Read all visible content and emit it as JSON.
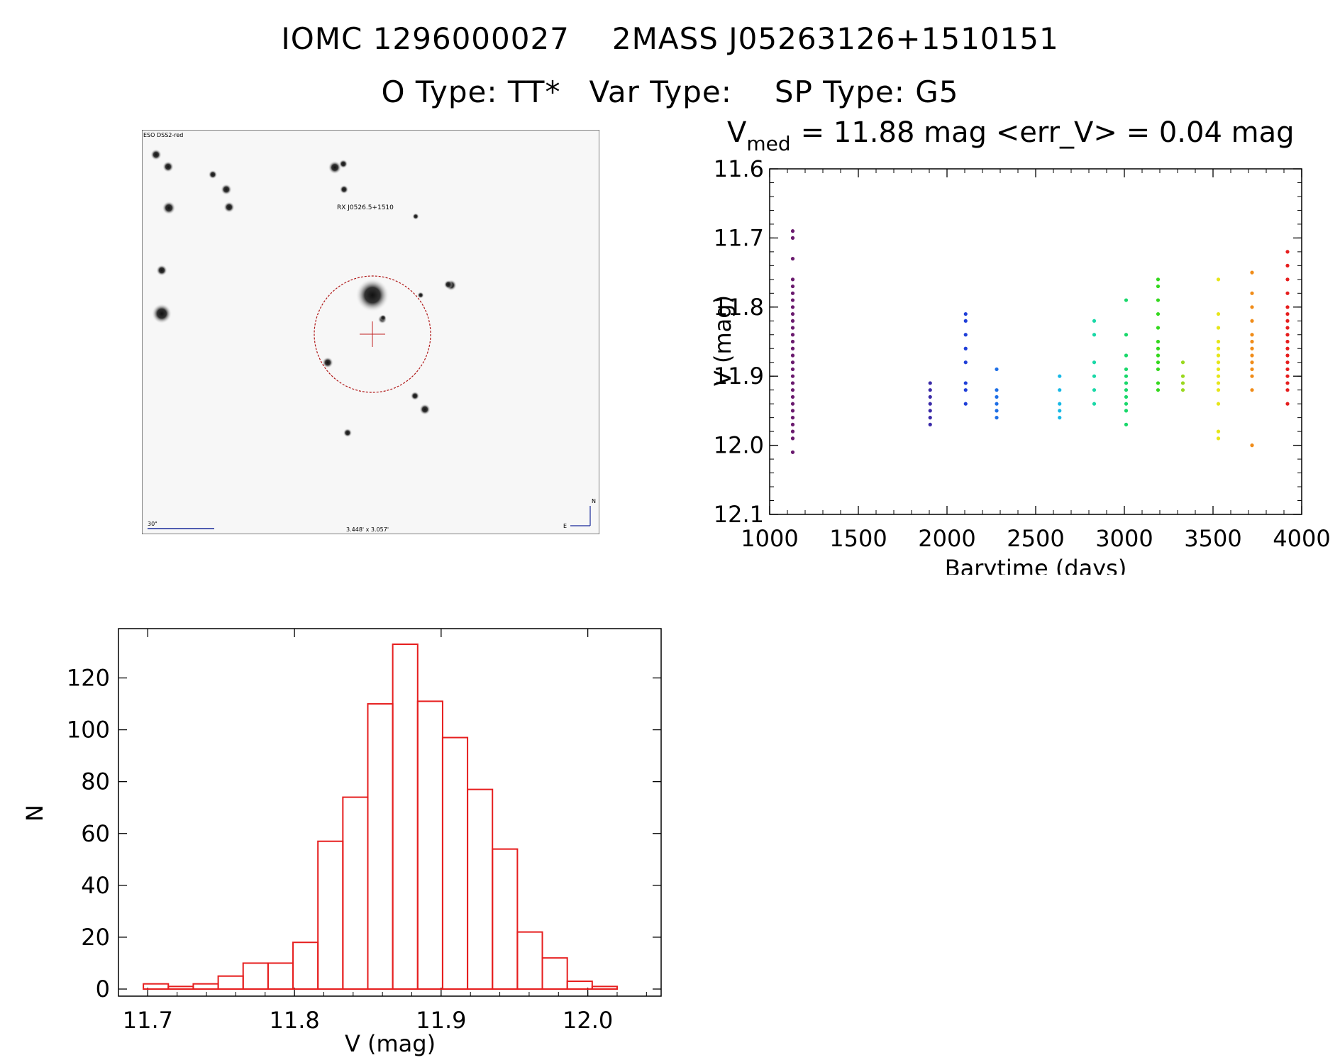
{
  "header": {
    "object_id": "IOMC 1296000027",
    "cross_id": "2MASS J05263126+1510151",
    "o_type": "O Type: TT*",
    "var_type": "Var Type:",
    "sp_type": "SP Type: G5"
  },
  "image_panel": {
    "survey_label": "ESO DSS2-red",
    "target_label": "RX J0526.5+1510",
    "scale_label": "30\"",
    "zoom_label": "3.448' x 3.057'",
    "compass_n": "N",
    "compass_e": "E"
  },
  "chart_data": [
    {
      "type": "scatter",
      "title_prefix": "V",
      "title_subscript": "med",
      "title_rest": "= 11.88 mag <err_V> = 0.04 mag",
      "xlabel": "Barytime (days)",
      "ylabel": "V (mag)",
      "xlim": [
        1000,
        4000
      ],
      "ylim": [
        12.1,
        11.6
      ],
      "y_inverted": true,
      "xticks": [
        1000,
        1500,
        2000,
        2500,
        3000,
        3500,
        4000
      ],
      "yticks": [
        11.6,
        11.7,
        11.8,
        11.9,
        12.0,
        12.1
      ],
      "ytick_labels": [
        "11.6",
        "11.7",
        "11.8",
        "11.9",
        "12.0",
        "12.1"
      ],
      "series": [
        {
          "color": "#6a1a6e",
          "x": 1130,
          "values": [
            11.69,
            11.7,
            11.73,
            11.76,
            11.77,
            11.78,
            11.79,
            11.8,
            11.81,
            11.82,
            11.83,
            11.84,
            11.85,
            11.86,
            11.87,
            11.88,
            11.89,
            11.9,
            11.91,
            11.92,
            11.93,
            11.94,
            11.95,
            11.96,
            11.97,
            11.98,
            11.99,
            12.01
          ]
        },
        {
          "color": "#3a2aa8",
          "x": 1905,
          "values": [
            11.91,
            11.92,
            11.93,
            11.94,
            11.95,
            11.96,
            11.97
          ]
        },
        {
          "color": "#1f3fd8",
          "x": 2105,
          "values": [
            11.81,
            11.82,
            11.84,
            11.86,
            11.88,
            11.91,
            11.92,
            11.94
          ]
        },
        {
          "color": "#1e6fe6",
          "x": 2280,
          "values": [
            11.89,
            11.92,
            11.93,
            11.94,
            11.95,
            11.96
          ]
        },
        {
          "color": "#16b8e6",
          "x": 2635,
          "values": [
            11.9,
            11.92,
            11.94,
            11.95,
            11.96
          ]
        },
        {
          "color": "#19d8a6",
          "x": 2830,
          "values": [
            11.82,
            11.84,
            11.88,
            11.9,
            11.92,
            11.94
          ]
        },
        {
          "color": "#19d86a",
          "x": 3010,
          "values": [
            11.79,
            11.84,
            11.87,
            11.89,
            11.9,
            11.91,
            11.92,
            11.93,
            11.94,
            11.95,
            11.97
          ]
        },
        {
          "color": "#34d81e",
          "x": 3190,
          "values": [
            11.76,
            11.77,
            11.79,
            11.81,
            11.83,
            11.85,
            11.86,
            11.87,
            11.88,
            11.89,
            11.91,
            11.92
          ]
        },
        {
          "color": "#9ad81e",
          "x": 3330,
          "values": [
            11.88,
            11.9,
            11.91,
            11.92
          ]
        },
        {
          "color": "#e6e619",
          "x": 3530,
          "values": [
            11.76,
            11.81,
            11.83,
            11.85,
            11.86,
            11.87,
            11.88,
            11.89,
            11.9,
            11.91,
            11.92,
            11.94,
            11.98,
            11.99
          ]
        },
        {
          "color": "#f08c19",
          "x": 3720,
          "values": [
            11.75,
            11.78,
            11.8,
            11.82,
            11.84,
            11.85,
            11.86,
            11.87,
            11.88,
            11.89,
            11.9,
            11.92,
            12.0
          ]
        },
        {
          "color": "#e61e1e",
          "x": 3920,
          "values": [
            11.72,
            11.74,
            11.76,
            11.78,
            11.8,
            11.81,
            11.82,
            11.83,
            11.84,
            11.85,
            11.86,
            11.87,
            11.88,
            11.89,
            11.9,
            11.91,
            11.92,
            11.94
          ]
        }
      ]
    },
    {
      "type": "bar",
      "subtype": "histogram",
      "xlabel": "V (mag)",
      "ylabel": "N",
      "xlim": [
        11.68,
        12.05
      ],
      "ylim": [
        0,
        133
      ],
      "xticks": [
        11.7,
        11.8,
        11.9,
        12.0
      ],
      "xtick_labels": [
        "11.7",
        "11.8",
        "11.9",
        "12.0"
      ],
      "yticks": [
        0,
        20,
        40,
        60,
        80,
        100,
        120
      ],
      "bar_color": "#e61e1e",
      "bin_width": 0.017,
      "bins": [
        {
          "x0": 11.697,
          "count": 2
        },
        {
          "x0": 11.714,
          "count": 1
        },
        {
          "x0": 11.731,
          "count": 2
        },
        {
          "x0": 11.748,
          "count": 5
        },
        {
          "x0": 11.765,
          "count": 10
        },
        {
          "x0": 11.782,
          "count": 10
        },
        {
          "x0": 11.799,
          "count": 18
        },
        {
          "x0": 11.816,
          "count": 57
        },
        {
          "x0": 11.833,
          "count": 74
        },
        {
          "x0": 11.85,
          "count": 110
        },
        {
          "x0": 11.867,
          "count": 133
        },
        {
          "x0": 11.884,
          "count": 111
        },
        {
          "x0": 11.901,
          "count": 97
        },
        {
          "x0": 11.918,
          "count": 77
        },
        {
          "x0": 11.935,
          "count": 54
        },
        {
          "x0": 11.952,
          "count": 22
        },
        {
          "x0": 11.969,
          "count": 12
        },
        {
          "x0": 11.986,
          "count": 3
        },
        {
          "x0": 12.003,
          "count": 1
        }
      ]
    }
  ]
}
